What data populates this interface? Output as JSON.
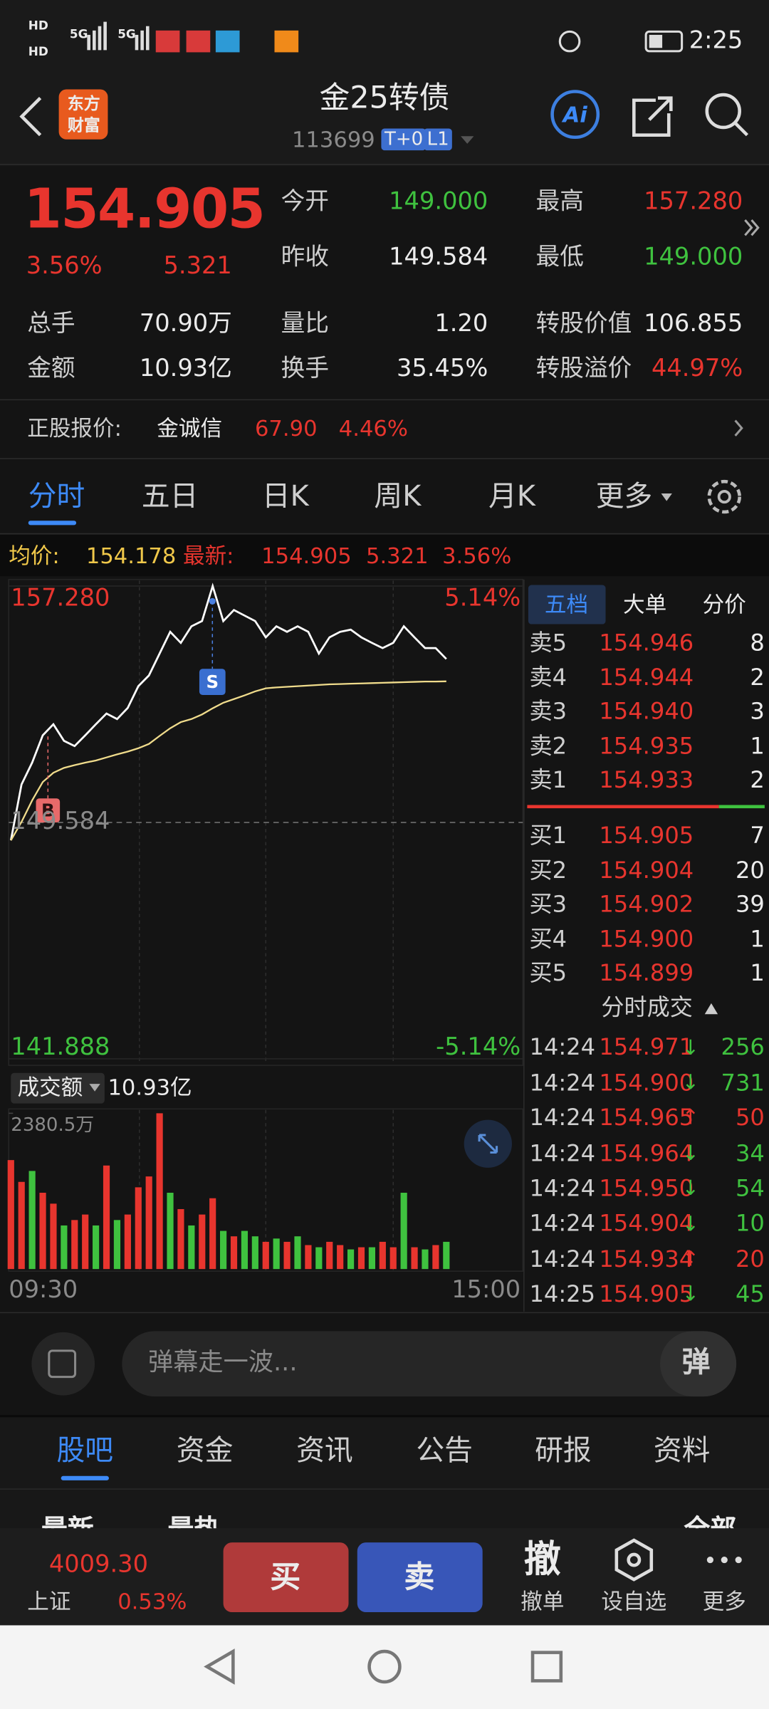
{
  "status_bar": {
    "labels": [
      "HD",
      "HD",
      "5G",
      "5G"
    ],
    "time": "2:25"
  },
  "header": {
    "logo": [
      "东方",
      "财富"
    ],
    "title": "金25转债",
    "code": "113699",
    "badges": [
      "T+0",
      "L1"
    ],
    "ai": "Ai"
  },
  "quote": {
    "price": "154.905",
    "change_pct": "3.56%",
    "change": "5.321",
    "fields_top": [
      [
        {
          "label": "今开",
          "value": "149.000",
          "color": "green"
        },
        {
          "label": "最高",
          "value": "157.280",
          "color": "red"
        }
      ],
      [
        {
          "label": "昨收",
          "value": "149.584",
          "color": "white"
        },
        {
          "label": "最低",
          "value": "149.000",
          "color": "green"
        }
      ]
    ],
    "fields_bottom": [
      [
        {
          "label": "总手",
          "value": "70.90万",
          "color": "white"
        },
        {
          "label": "量比",
          "value": "1.20",
          "color": "white"
        },
        {
          "label": "转股价值",
          "value": "106.855",
          "color": "white"
        }
      ],
      [
        {
          "label": "金额",
          "value": "10.93亿",
          "color": "white"
        },
        {
          "label": "换手",
          "value": "35.45%",
          "color": "white"
        },
        {
          "label": "转股溢价",
          "value": "44.97%",
          "color": "red"
        }
      ]
    ]
  },
  "stock": {
    "label": "正股报价:",
    "name": "金诚信",
    "price": "67.90",
    "change": "4.46%"
  },
  "tabs": {
    "items": [
      "分时",
      "五日",
      "日K",
      "周K",
      "月K",
      "更多"
    ]
  },
  "chart_info": {
    "avg_label": "均价:",
    "avg": "154.178",
    "latest_label": "最新:",
    "latest": "154.905",
    "change": "5.321",
    "pct": "3.56%"
  },
  "chart_data": {
    "type": "line",
    "categories": [
      "09:30",
      null,
      null,
      null,
      null,
      null,
      null,
      null,
      null,
      null,
      null,
      null,
      null,
      null,
      null,
      null,
      null,
      null,
      null,
      null,
      null,
      null,
      null,
      null,
      null,
      null,
      null,
      null,
      null,
      null,
      null,
      null,
      null,
      null,
      null,
      null,
      null,
      null,
      null,
      null,
      null,
      null,
      null,
      null,
      null,
      null,
      null,
      null,
      "15:00"
    ],
    "series": [
      {
        "color": "#ffffff",
        "values": [
          149.0,
          150.82,
          151.53,
          152.42,
          152.78,
          152.24,
          152.07,
          152.42,
          152.78,
          153.13,
          152.95,
          153.31,
          154.02,
          154.37,
          155.08,
          155.79,
          155.43,
          155.97,
          156.14,
          157.28,
          156.14,
          156.5,
          156.32,
          156.14,
          155.61,
          155.97,
          155.79,
          155.97,
          155.79,
          155.08,
          155.61,
          155.79,
          155.86,
          155.61,
          155.43,
          155.26,
          155.43,
          155.97,
          155.61,
          155.26,
          155.26,
          154.905,
          null,
          null,
          null,
          null,
          null,
          null,
          null
        ]
      },
      {
        "color": "#f0dc8c",
        "values": [
          149.0,
          149.6,
          150.3,
          150.9,
          151.2,
          151.36,
          151.45,
          151.53,
          151.6,
          151.7,
          151.8,
          151.89,
          152.0,
          152.14,
          152.4,
          152.65,
          152.85,
          152.95,
          153.1,
          153.3,
          153.48,
          153.6,
          153.72,
          153.85,
          153.95,
          153.98,
          154.0,
          154.02,
          154.04,
          154.06,
          154.08,
          154.09,
          154.1,
          154.11,
          154.12,
          154.13,
          154.14,
          154.15,
          154.16,
          154.17,
          154.17,
          154.178,
          null,
          null,
          null,
          null,
          null,
          null,
          null
        ]
      }
    ],
    "ylim": [
      141.888,
      157.28
    ],
    "yticks": [
      141.888,
      149.584,
      {
        "value": 157.28,
        "label": "157.280"
      }
    ],
    "y2lim": [
      -5.14,
      5.14
    ],
    "y2ticks": [
      {
        "value": -5.14,
        "label": "-5.14%"
      },
      {
        "value": 5.14,
        "label": "5.14%"
      }
    ],
    "markers": [
      {
        "label": "B"
      },
      {
        "label": "S"
      }
    ],
    "volume": {
      "values": [
        1665,
        1332,
        1499,
        1166,
        999,
        666,
        749,
        833,
        666,
        1582,
        749,
        833,
        1249,
        1415,
        2380.5,
        1166,
        916,
        666,
        833,
        1082,
        583,
        500,
        583,
        500,
        416,
        466,
        416,
        500,
        366,
        333,
        416,
        366,
        300,
        333,
        333,
        416,
        333,
        1166,
        333,
        300,
        366,
        416,
        null,
        null,
        null,
        null,
        null,
        null,
        null
      ],
      "colors": [
        "#e8352e",
        "#e8352e",
        "#3fc23f",
        "#e8352e",
        "#e8352e",
        "#3fc23f",
        "#e8352e",
        "#e8352e",
        "#3fc23f",
        "#e8352e",
        "#3fc23f",
        "#e8352e",
        "#e8352e",
        "#e8352e",
        "#e8352e",
        "#3fc23f",
        "#e8352e",
        "#3fc23f",
        "#e8352e",
        "#e8352e",
        "#3fc23f",
        "#e8352e",
        "#3fc23f",
        "#3fc23f",
        "#e8352e",
        "#3fc23f",
        "#e8352e",
        "#3fc23f",
        "#e8352e",
        "#3fc23f",
        "#e8352e",
        "#e8352e",
        "#3fc23f",
        "#e8352e",
        "#3fc23f",
        "#e8352e",
        "#e8352e",
        "#3fc23f",
        "#e8352e",
        "#3fc23f",
        "#e8352e",
        "#3fc23f",
        null,
        null,
        null,
        null,
        null,
        null,
        null
      ],
      "ylim": [
        0,
        2380.5
      ],
      "yticks": [
        {
          "value": 2380.5,
          "label": "2380.5万"
        }
      ]
    }
  },
  "volume_header": {
    "label": "成交额",
    "total": "10.93亿"
  },
  "order_book": {
    "tabs": [
      "五档",
      "大单",
      "分价"
    ],
    "asks": [
      {
        "label": "卖5",
        "price": "154.946",
        "vol": "8"
      },
      {
        "label": "卖4",
        "price": "154.944",
        "vol": "2"
      },
      {
        "label": "卖3",
        "price": "154.940",
        "vol": "3"
      },
      {
        "label": "卖2",
        "price": "154.935",
        "vol": "1"
      },
      {
        "label": "卖1",
        "price": "154.933",
        "vol": "2"
      }
    ],
    "bids": [
      {
        "label": "买1",
        "price": "154.905",
        "vol": "7"
      },
      {
        "label": "买2",
        "price": "154.904",
        "vol": "20"
      },
      {
        "label": "买3",
        "price": "154.902",
        "vol": "39"
      },
      {
        "label": "买4",
        "price": "154.900",
        "vol": "1"
      },
      {
        "label": "买5",
        "price": "154.899",
        "vol": "1"
      }
    ]
  },
  "trades": {
    "title": "分时成交",
    "rows": [
      {
        "time": "14:24",
        "price": "154.971",
        "dir": "↓",
        "vol": "256"
      },
      {
        "time": "14:24",
        "price": "154.900",
        "dir": "↓",
        "vol": "731"
      },
      {
        "time": "14:24",
        "price": "154.965",
        "dir": "↑",
        "vol": "50"
      },
      {
        "time": "14:24",
        "price": "154.964",
        "dir": "↓",
        "vol": "34"
      },
      {
        "time": "14:24",
        "price": "154.950",
        "dir": "↓",
        "vol": "54"
      },
      {
        "time": "14:24",
        "price": "154.904",
        "dir": "↓",
        "vol": "10"
      },
      {
        "time": "14:24",
        "price": "154.934",
        "dir": "↑",
        "vol": "20"
      },
      {
        "time": "14:25",
        "price": "154.905",
        "dir": "↓",
        "vol": "45"
      }
    ]
  },
  "danmu": {
    "placeholder": "弹幕走一波...",
    "button": "弹"
  },
  "bottom_tabs": [
    "股吧",
    "资金",
    "资讯",
    "公告",
    "研报",
    "资料"
  ],
  "sub_tabs": [
    "最新",
    "最热",
    "全部"
  ],
  "bottom_bar": {
    "index_value": "4009.30",
    "index_name": "上证",
    "index_pct": "0.53%",
    "buy": "买",
    "sell": "卖",
    "cancel_icon": "撤",
    "cancel": "撤单",
    "watch": "设自选",
    "more": "更多"
  }
}
